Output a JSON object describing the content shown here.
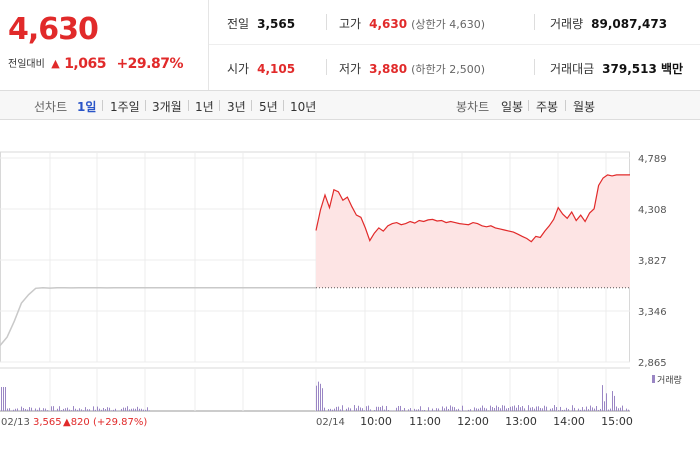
{
  "summary": {
    "price": "4,630",
    "change_label": "전일대비",
    "change_arrow": "▲",
    "change_value": "1,065",
    "change_rate": "+29.87%"
  },
  "stats": {
    "prev_close": {
      "label": "전일",
      "value": "3,565"
    },
    "high": {
      "label": "고가",
      "value": "4,630",
      "extra": "(상한가 4,630)"
    },
    "volume": {
      "label": "거래량",
      "value": "89,087,473"
    },
    "open": {
      "label": "시가",
      "value": "4,105"
    },
    "low": {
      "label": "저가",
      "value": "3,880",
      "extra": "(하한가 2,500)"
    },
    "trade_value": {
      "label": "거래대금",
      "value": "379,513 백만"
    }
  },
  "line_chart_tabs": {
    "title": "선차트",
    "items": [
      {
        "label": "1일",
        "active": true
      },
      {
        "label": "1주일",
        "active": false
      },
      {
        "label": "3개월",
        "active": false
      },
      {
        "label": "1년",
        "active": false
      },
      {
        "label": "3년",
        "active": false
      },
      {
        "label": "5년",
        "active": false
      },
      {
        "label": "10년",
        "active": false
      }
    ]
  },
  "candle_chart_tabs": {
    "title": "봉차트",
    "items": [
      {
        "label": "일봉"
      },
      {
        "label": "주봉"
      },
      {
        "label": "월봉"
      }
    ]
  },
  "colors": {
    "up": "#e12a2a",
    "down": "#2a55c8",
    "area_fill": "#fde4e4",
    "volume": "#9a86c4",
    "prev_line": "#c9c9c9"
  },
  "chart_data": {
    "type": "line",
    "y_ticks": [
      "4,789",
      "4,308",
      "3,827",
      "3,346",
      "2,865"
    ],
    "ylim": [
      2865,
      4789
    ],
    "prev_close": 3565,
    "prev_day": {
      "date_label": "02/13",
      "close_text": "3,565",
      "change_text": "▲820 (+29.87%)",
      "prices": [
        3020,
        3100,
        3250,
        3420,
        3500,
        3560,
        3565,
        3562,
        3565,
        3566,
        3564,
        3565,
        3565,
        3566,
        3565,
        3564,
        3565,
        3565,
        3565,
        3565,
        3565,
        3565
      ]
    },
    "today": {
      "date_label": "02/14",
      "x_tick_labels": [
        "10:00",
        "11:00",
        "12:00",
        "13:00",
        "14:00",
        "15:00"
      ],
      "prices": [
        4105,
        4300,
        4440,
        4320,
        4490,
        4470,
        4390,
        4420,
        4330,
        4250,
        4230,
        4130,
        4010,
        4080,
        4130,
        4100,
        4150,
        4170,
        4180,
        4160,
        4170,
        4190,
        4175,
        4200,
        4190,
        4205,
        4210,
        4195,
        4200,
        4180,
        4190,
        4180,
        4170,
        4165,
        4160,
        4180,
        4170,
        4150,
        4140,
        4150,
        4130,
        4120,
        4110,
        4100,
        4090,
        4070,
        4050,
        4030,
        4000,
        4050,
        4040,
        4100,
        4150,
        4210,
        4320,
        4260,
        4220,
        4280,
        4200,
        4250,
        4190,
        4270,
        4310,
        4530,
        4600,
        4630,
        4620,
        4630,
        4630,
        4630,
        4630
      ],
      "volume_legend": "거래량"
    }
  }
}
